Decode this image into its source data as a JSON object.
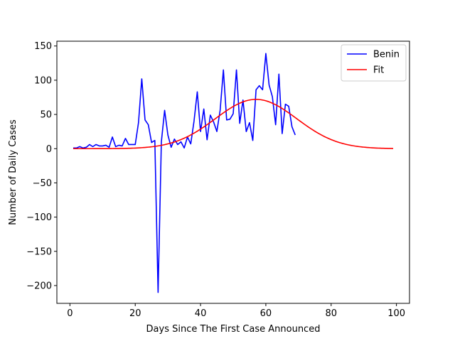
{
  "chart_data": {
    "type": "line",
    "xlabel": "Days Since The First Case Announced",
    "ylabel": "Number of Daily Cases",
    "xlim": [
      -4,
      104
    ],
    "ylim": [
      -226,
      157
    ],
    "xticks": [
      0,
      20,
      40,
      60,
      80,
      100
    ],
    "yticks": [
      -200,
      -150,
      -100,
      -50,
      0,
      50,
      100,
      150
    ],
    "grid": false,
    "legend_position": "top-right",
    "series": [
      {
        "name": "Benin",
        "color": "#0000ff",
        "x": [
          1,
          2,
          3,
          4,
          5,
          6,
          7,
          8,
          9,
          10,
          11,
          12,
          13,
          14,
          15,
          16,
          17,
          18,
          19,
          20,
          21,
          22,
          23,
          24,
          25,
          26,
          27,
          28,
          29,
          30,
          31,
          32,
          33,
          34,
          35,
          36,
          37,
          38,
          39,
          40,
          41,
          42,
          43,
          44,
          45,
          46,
          47,
          48,
          49,
          50,
          51,
          52,
          53,
          54,
          55,
          56,
          57,
          58,
          59,
          60,
          61,
          62,
          63,
          64,
          65,
          66,
          67,
          68,
          69
        ],
        "y": [
          1,
          1,
          3,
          1,
          2,
          6,
          3,
          6,
          4,
          4,
          5,
          2,
          17,
          3,
          5,
          4,
          15,
          6,
          6,
          6,
          38,
          102,
          42,
          35,
          9,
          12,
          -210,
          10,
          56,
          20,
          2,
          14,
          6,
          10,
          1,
          17,
          7,
          40,
          83,
          25,
          58,
          13,
          49,
          39,
          25,
          56,
          115,
          42,
          43,
          51,
          115,
          37,
          71,
          25,
          38,
          12,
          86,
          92,
          86,
          139,
          93,
          76,
          35,
          109,
          22,
          65,
          62,
          32,
          20
        ]
      },
      {
        "name": "Fit",
        "color": "#ff0000",
        "x_start": 1,
        "x_end": 99,
        "amplitude": 72,
        "center": 57,
        "sigma": 12.5
      }
    ]
  }
}
